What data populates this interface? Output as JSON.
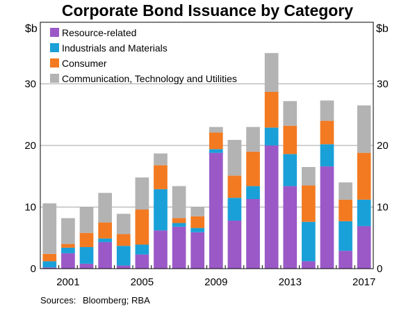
{
  "chart_data": {
    "type": "bar",
    "stacked": true,
    "title": "Corporate Bond Issuance by Category",
    "ylabel_left": "$b",
    "ylabel_right": "$b",
    "ylim": [
      0,
      40
    ],
    "yticks": [
      0,
      10,
      20,
      30
    ],
    "grid": true,
    "legend_position": "top-left",
    "categories": [
      2000,
      2001,
      2002,
      2003,
      2004,
      2005,
      2006,
      2007,
      2008,
      2009,
      2010,
      2011,
      2012,
      2013,
      2014,
      2015,
      2016,
      2017
    ],
    "xtick_labels": [
      {
        "category": 2001,
        "label": "2001"
      },
      {
        "category": 2005,
        "label": "2005"
      },
      {
        "category": 2009,
        "label": "2009"
      },
      {
        "category": 2013,
        "label": "2013"
      },
      {
        "category": 2017,
        "label": "2017"
      }
    ],
    "series": [
      {
        "name": "Resource-related",
        "color": "#9b59c8",
        "values": [
          0.2,
          2.5,
          0.8,
          4.3,
          0.5,
          2.3,
          6.2,
          6.8,
          5.9,
          18.8,
          7.8,
          11.3,
          20.0,
          13.4,
          1.2,
          16.6,
          2.9,
          6.9
        ]
      },
      {
        "name": "Industrials and Materials",
        "color": "#1aa0d8",
        "values": [
          1.0,
          0.9,
          2.7,
          0.6,
          3.2,
          1.6,
          6.7,
          0.6,
          0.7,
          0.6,
          3.7,
          2.1,
          2.9,
          5.2,
          6.4,
          3.6,
          4.8,
          4.3
        ]
      },
      {
        "name": "Consumer",
        "color": "#f37a21",
        "values": [
          1.2,
          0.6,
          2.3,
          2.6,
          1.9,
          5.7,
          3.9,
          0.8,
          1.9,
          2.7,
          3.6,
          5.6,
          5.8,
          4.6,
          5.9,
          3.8,
          3.5,
          7.6
        ]
      },
      {
        "name": "Communication, Technology and Utilities",
        "color": "#b3b3b3",
        "values": [
          8.2,
          4.2,
          4.2,
          4.8,
          3.3,
          5.2,
          1.9,
          5.2,
          1.5,
          0.9,
          5.8,
          4.0,
          6.3,
          4.0,
          3.0,
          3.3,
          2.8,
          7.7
        ]
      }
    ]
  },
  "source_note": {
    "label": "Sources:",
    "text": "Bloomberg; RBA"
  }
}
